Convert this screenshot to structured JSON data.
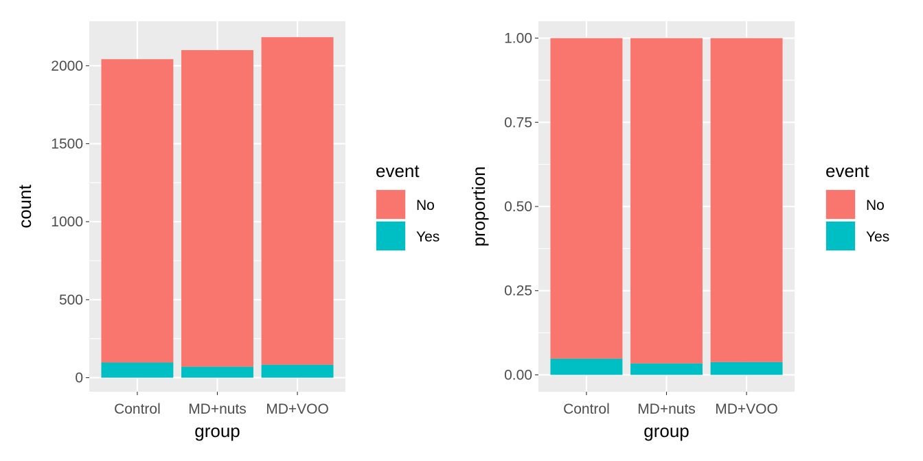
{
  "colors": {
    "panel_background": "#EBEBEB",
    "grid": "#FFFFFF",
    "tick": "#333333",
    "No": "#F8766D",
    "Yes": "#00BFC4"
  },
  "chart_data": [
    {
      "type": "bar",
      "stacked": true,
      "title": "",
      "xlabel": "group",
      "ylabel": "count",
      "categories": [
        "Control",
        "MD+nuts",
        "MD+VOO"
      ],
      "series": [
        {
          "name": "Yes",
          "values": [
            97,
            70,
            83
          ]
        },
        {
          "name": "No",
          "values": [
            1945,
            2030,
            2100
          ]
        }
      ],
      "ylim": [
        -90,
        2285
      ],
      "yticks": [
        0,
        500,
        1000,
        1500,
        2000
      ],
      "ytick_labels": [
        "0",
        "500",
        "1000",
        "1500",
        "2000"
      ],
      "grid": true,
      "legend": {
        "title": "event",
        "placement": "right",
        "entries": [
          "No",
          "Yes"
        ]
      }
    },
    {
      "type": "bar",
      "stacked": true,
      "title": "",
      "xlabel": "group",
      "ylabel": "proportion",
      "categories": [
        "Control",
        "MD+nuts",
        "MD+VOO"
      ],
      "series": [
        {
          "name": "Yes",
          "values": [
            0.048,
            0.034,
            0.038
          ]
        },
        {
          "name": "No",
          "values": [
            0.952,
            0.966,
            0.962
          ]
        }
      ],
      "ylim": [
        -0.05,
        1.05
      ],
      "yticks": [
        0,
        0.25,
        0.5,
        0.75,
        1.0
      ],
      "ytick_labels": [
        "0.00",
        "0.25",
        "0.50",
        "0.75",
        "1.00"
      ],
      "grid": true,
      "legend": {
        "title": "event",
        "placement": "right",
        "entries": [
          "No",
          "Yes"
        ]
      }
    }
  ]
}
